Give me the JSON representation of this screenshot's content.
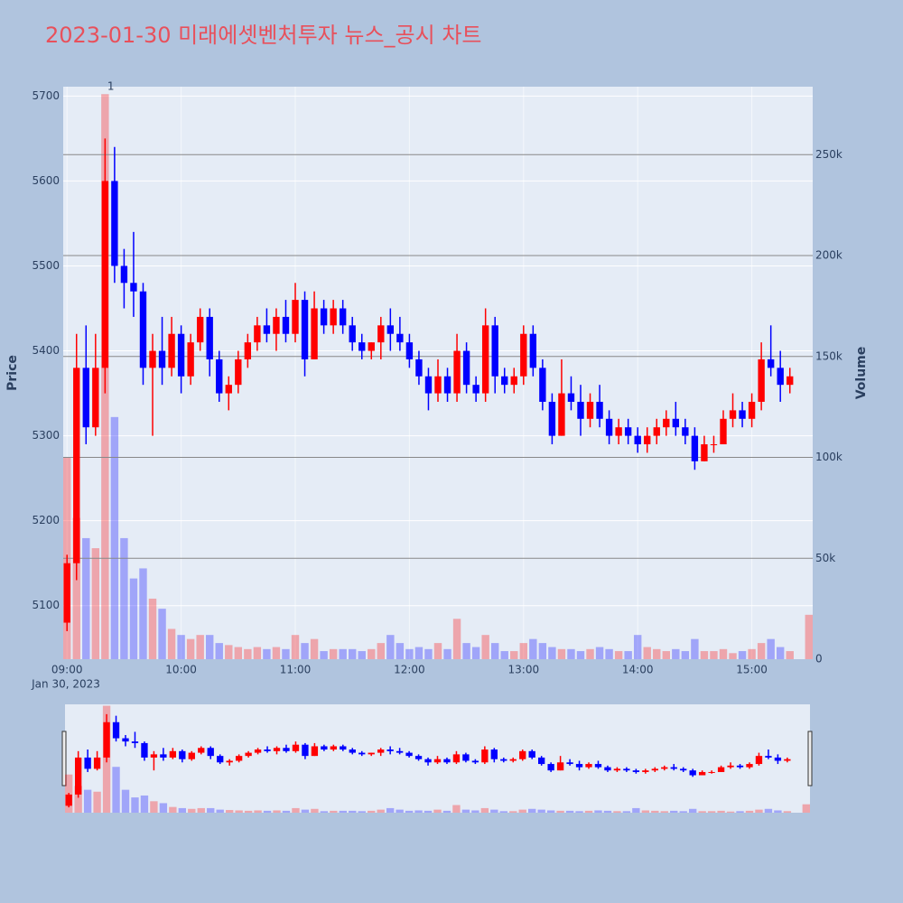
{
  "chart_data": {
    "type": "candlestick",
    "title": "2023-01-30 미래에셋벤처투자 뉴스_공시 차트",
    "y_label": "Price",
    "y2_label": "Volume",
    "x_date_label": "Jan 30, 2023",
    "increasing_color": "#ff0000",
    "decreasing_color": "#0000ff",
    "annotation": {
      "x": "09:23",
      "text": "1"
    },
    "x": [
      "09:00",
      "09:05",
      "09:10",
      "09:15",
      "09:20",
      "09:25",
      "09:30",
      "09:35",
      "09:40",
      "09:45",
      "09:50",
      "09:55",
      "10:00",
      "10:05",
      "10:10",
      "10:15",
      "10:20",
      "10:25",
      "10:30",
      "10:35",
      "10:40",
      "10:45",
      "10:50",
      "10:55",
      "11:00",
      "11:05",
      "11:10",
      "11:15",
      "11:20",
      "11:25",
      "11:30",
      "11:35",
      "11:40",
      "11:45",
      "11:50",
      "11:55",
      "12:00",
      "12:05",
      "12:10",
      "12:15",
      "12:20",
      "12:25",
      "12:30",
      "12:35",
      "12:40",
      "12:45",
      "12:50",
      "12:55",
      "13:00",
      "13:05",
      "13:10",
      "13:15",
      "13:20",
      "13:25",
      "13:30",
      "13:35",
      "13:40",
      "13:45",
      "13:50",
      "13:55",
      "14:00",
      "14:05",
      "14:10",
      "14:15",
      "14:20",
      "14:25",
      "14:30",
      "14:35",
      "14:40",
      "14:45",
      "14:50",
      "14:55",
      "15:00",
      "15:05",
      "15:10",
      "15:15",
      "15:20",
      "15:30"
    ],
    "open": [
      5080,
      5150,
      5380,
      5310,
      5380,
      5600,
      5500,
      5480,
      5470,
      5380,
      5400,
      5380,
      5420,
      5370,
      5410,
      5440,
      5390,
      5350,
      5360,
      5390,
      5410,
      5430,
      5420,
      5440,
      5420,
      5460,
      5390,
      5450,
      5430,
      5450,
      5430,
      5410,
      5400,
      5410,
      5430,
      5420,
      5410,
      5390,
      5370,
      5350,
      5370,
      5350,
      5400,
      5360,
      5350,
      5430,
      5370,
      5360,
      5370,
      5420,
      5380,
      5340,
      5300,
      5350,
      5340,
      5320,
      5340,
      5320,
      5300,
      5310,
      5300,
      5290,
      5300,
      5310,
      5320,
      5310,
      5300,
      5270,
      5290,
      5290,
      5320,
      5330,
      5320,
      5340,
      5390,
      5380,
      5360,
      null
    ],
    "high": [
      5160,
      5420,
      5430,
      5420,
      5650,
      5640,
      5520,
      5540,
      5480,
      5420,
      5440,
      5440,
      5430,
      5420,
      5450,
      5450,
      5400,
      5370,
      5400,
      5420,
      5440,
      5450,
      5450,
      5460,
      5480,
      5470,
      5470,
      5460,
      5460,
      5460,
      5440,
      5420,
      5410,
      5440,
      5450,
      5440,
      5420,
      5400,
      5380,
      5390,
      5380,
      5420,
      5410,
      5370,
      5450,
      5440,
      5380,
      5380,
      5430,
      5430,
      5390,
      5350,
      5390,
      5370,
      5360,
      5350,
      5360,
      5330,
      5320,
      5320,
      5310,
      5310,
      5320,
      5330,
      5340,
      5320,
      5310,
      5300,
      5300,
      5330,
      5350,
      5340,
      5350,
      5410,
      5430,
      5400,
      5380,
      null
    ],
    "low": [
      5070,
      5130,
      5290,
      5300,
      5350,
      5480,
      5450,
      5440,
      5360,
      5300,
      5360,
      5370,
      5350,
      5360,
      5400,
      5370,
      5340,
      5330,
      5350,
      5380,
      5400,
      5410,
      5400,
      5410,
      5410,
      5370,
      5390,
      5420,
      5420,
      5420,
      5400,
      5390,
      5390,
      5390,
      5400,
      5400,
      5380,
      5360,
      5330,
      5340,
      5340,
      5340,
      5350,
      5340,
      5340,
      5350,
      5350,
      5350,
      5360,
      5370,
      5330,
      5290,
      5300,
      5330,
      5300,
      5310,
      5310,
      5290,
      5290,
      5290,
      5280,
      5280,
      5290,
      5300,
      5300,
      5290,
      5260,
      5270,
      5280,
      5290,
      5310,
      5310,
      5310,
      5330,
      5370,
      5340,
      5350,
      null
    ],
    "close": [
      5150,
      5380,
      5310,
      5380,
      5600,
      5500,
      5480,
      5470,
      5380,
      5400,
      5380,
      5420,
      5370,
      5410,
      5440,
      5390,
      5350,
      5360,
      5390,
      5410,
      5430,
      5420,
      5440,
      5420,
      5460,
      5390,
      5450,
      5430,
      5450,
      5430,
      5410,
      5400,
      5410,
      5430,
      5420,
      5410,
      5390,
      5370,
      5350,
      5370,
      5350,
      5400,
      5360,
      5350,
      5430,
      5370,
      5360,
      5370,
      5420,
      5380,
      5340,
      5300,
      5350,
      5340,
      5320,
      5340,
      5320,
      5300,
      5310,
      5300,
      5290,
      5300,
      5310,
      5320,
      5310,
      5300,
      5270,
      5290,
      5290,
      5320,
      5330,
      5320,
      5340,
      5390,
      5380,
      5360,
      5370,
      null
    ],
    "volume": [
      100000,
      70000,
      60000,
      55000,
      280000,
      120000,
      60000,
      40000,
      45000,
      30000,
      25000,
      15000,
      12000,
      10000,
      12000,
      12000,
      8000,
      7000,
      6000,
      5000,
      6000,
      5000,
      6000,
      5000,
      12000,
      8000,
      10000,
      4000,
      5000,
      5000,
      5000,
      4000,
      5000,
      8000,
      12000,
      8000,
      5000,
      6000,
      5000,
      8000,
      5000,
      20000,
      8000,
      6000,
      12000,
      8000,
      4000,
      4000,
      8000,
      10000,
      8000,
      6000,
      5000,
      5000,
      4000,
      5000,
      6000,
      5000,
      4000,
      4000,
      12000,
      6000,
      5000,
      4000,
      5000,
      4000,
      10000,
      4000,
      4000,
      5000,
      3000,
      4000,
      5000,
      8000,
      10000,
      6000,
      4000,
      22000
    ],
    "xlim": [
      "08:58",
      "15:32"
    ],
    "xticks": [
      "09:00",
      "10:00",
      "11:00",
      "12:00",
      "13:00",
      "14:00",
      "15:00"
    ],
    "ylim": [
      5037,
      5711
    ],
    "yticks": [
      5100,
      5200,
      5300,
      5400,
      5500,
      5600,
      5700
    ],
    "y2lim": [
      0,
      283700
    ],
    "y2ticks": [
      0,
      {
        "value": 50000,
        "label": "50k"
      },
      {
        "value": 100000,
        "label": "100k"
      },
      {
        "value": 150000,
        "label": "150k"
      },
      {
        "value": 200000,
        "label": "200k"
      },
      {
        "value": 250000,
        "label": "250k"
      }
    ],
    "grid": true
  }
}
